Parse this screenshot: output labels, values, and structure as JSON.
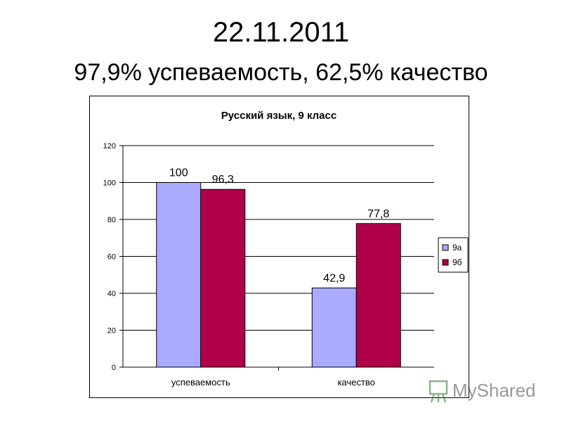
{
  "slide": {
    "title": "22.11.2011",
    "subtitle": "97,9% успеваемость, 62,5% качество"
  },
  "watermark": {
    "text": "MyShared"
  },
  "chart_data": {
    "type": "bar",
    "title": "Русский язык, 9 класс",
    "categories": [
      "успеваемость",
      "качество"
    ],
    "series": [
      {
        "name": "9а",
        "values": [
          100,
          42.9
        ],
        "labels": [
          "100",
          "42,9"
        ],
        "color": "#aaaaff"
      },
      {
        "name": "9б",
        "values": [
          96.3,
          77.8
        ],
        "labels": [
          "96,3",
          "77,8"
        ],
        "color": "#b0004a"
      }
    ],
    "ylim": [
      0,
      120
    ],
    "yticks": [
      0,
      20,
      40,
      60,
      80,
      100,
      120
    ],
    "grid": true,
    "legend": "right",
    "xlabel": "",
    "ylabel": ""
  }
}
